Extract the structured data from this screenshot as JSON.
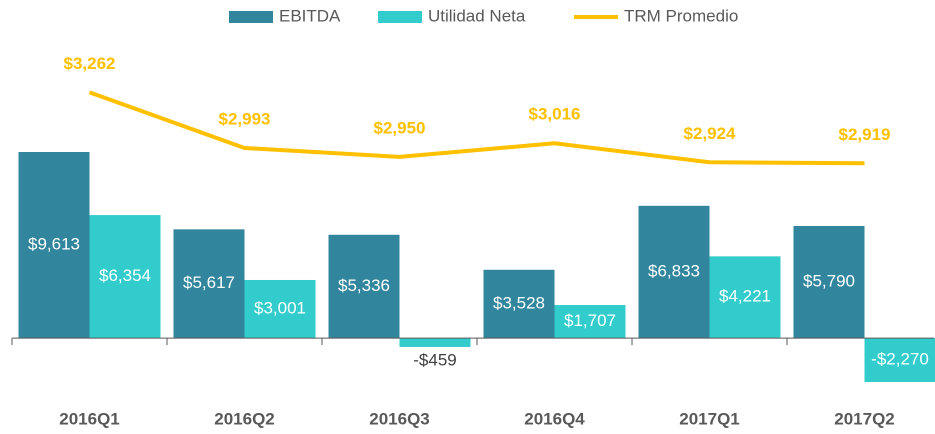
{
  "chart_data": {
    "type": "bar",
    "categories": [
      "2016Q1",
      "2016Q2",
      "2016Q3",
      "2016Q4",
      "2017Q1",
      "2017Q2"
    ],
    "series": [
      {
        "name": "EBITDA",
        "color": "#31859c",
        "values": [
          9613,
          5617,
          5336,
          3528,
          6833,
          5790
        ],
        "value_labels": [
          "$9,613",
          "$5,617",
          "$5,336",
          "$3,528",
          "$6,833",
          "$5,790"
        ]
      },
      {
        "name": "Utilidad Neta",
        "color": "#33cccc",
        "values": [
          6354,
          3001,
          -459,
          1707,
          4221,
          -2270
        ],
        "value_labels": [
          "$6,354",
          "$3,001",
          "-$459",
          "$1,707",
          "$4,221",
          "-$2,270"
        ]
      },
      {
        "name": "TRM Promedio",
        "type": "line",
        "axis": "y2",
        "color": "#ffc000",
        "values": [
          3262,
          2993,
          2950,
          3016,
          2924,
          2919
        ],
        "value_labels": [
          "$3,262",
          "$2,993",
          "$2,950",
          "$3,016",
          "$2,924",
          "$2,919"
        ]
      }
    ],
    "ylim": [
      -3200,
      15400
    ],
    "y2lim": [
      1775,
      3515
    ],
    "legend": "top"
  }
}
